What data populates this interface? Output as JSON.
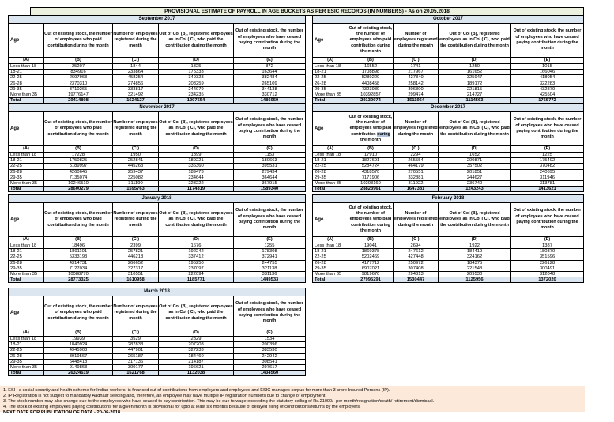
{
  "title": "PROVISIONAL ESTIMATE OF PAYROLL IN AGE BUCKETS AS PER ESIC RECORDS (IN NUMBERS) - As on 20.05.2018",
  "colors": {
    "title_fill": "#ebf1de",
    "header_fill": "#dce6f1",
    "notes_fill": "#fde9d9",
    "highlight_fill": "#b0c4de",
    "border": "#000000"
  },
  "column_headers": {
    "age": "Age",
    "b": "Out of existing stock, the number of employees who paid contribution during the month",
    "c": "Number of employees registered during the month",
    "d": "Out of Col (B), registered employees as in Col ( C), who paid the contribution during the month",
    "e": "Out of existing stock, the number of  employees  who have ceased paying contribution during the month",
    "letters": [
      "(A)",
      "(B)",
      "(C )",
      "(D)",
      "(E)"
    ]
  },
  "age_buckets": [
    "Less than 18",
    "18-21",
    "22-25",
    "26-28",
    "29-35",
    "More than 35",
    "Total"
  ],
  "tables": [
    {
      "month": "September 2017",
      "rows": [
        [
          25207,
          1844,
          1325,
          872
        ],
        [
          834916,
          233864,
          175333,
          163644
        ],
        [
          2697963,
          458254,
          349323,
          382484
        ],
        [
          2370310,
          274856,
          203259,
          265109
        ],
        [
          3710265,
          333817,
          244079,
          344138
        ],
        [
          19776147,
          321492,
          234235,
          330712
        ],
        [
          29414808,
          1624127,
          1207554,
          1486959
        ]
      ]
    },
    {
      "month": "October 2017",
      "rows": [
        [
          16552,
          1741,
          1250,
          1015
        ],
        [
          1708898,
          217967,
          161652,
          166046
        ],
        [
          5289220,
          427840,
          325947,
          418054
        ],
        [
          4408458,
          258142,
          189172,
          322283
        ],
        [
          7323989,
          306800,
          221815,
          432870
        ],
        [
          10392857,
          299474,
          214727,
          425504
        ],
        [
          29139974,
          1511964,
          1114563,
          1765772
        ]
      ]
    },
    {
      "month": "November 2017",
      "rows": [
        [
          17228,
          1950,
          1399,
          1153
        ],
        [
          1750825,
          252841,
          189221,
          180663
        ],
        [
          5189997,
          445263,
          336360,
          395531
        ],
        [
          4260645,
          259437,
          189473,
          279434
        ],
        [
          7135074,
          325082,
          234644,
          364644
        ],
        [
          10246510,
          311190,
          223222,
          367915
        ],
        [
          28600279,
          1595763,
          1174319,
          1589340
        ]
      ]
    },
    {
      "month": "December 2017",
      "b_header_highlight": "during",
      "rows": [
        [
          17910,
          2294,
          1652,
          1225
        ],
        [
          1827691,
          265554,
          200871,
          175492
        ],
        [
          5284724,
          464179,
          357502,
          370482
        ],
        [
          4318570,
          270551,
          201851,
          240695
        ],
        [
          7171906,
          332881,
          244627,
          311946
        ],
        [
          10203160,
          311922,
          236740,
          313781
        ],
        [
          28823961,
          1647381,
          1243243,
          1413621
        ]
      ]
    },
    {
      "month": "January 2018",
      "rows": [
        [
          18496,
          2399,
          1676,
          1255
        ],
        [
          1891101,
          257821,
          192242,
          178308
        ],
        [
          5333193,
          446218,
          337412,
          372941
        ],
        [
          4314731,
          266652,
          195250,
          244755
        ],
        [
          7127034,
          327317,
          237097,
          321138
        ],
        [
          10088770,
          310551,
          222094,
          331136
        ],
        [
          28773325,
          1610958,
          1185771,
          1449533
        ]
      ]
    },
    {
      "month": "February 2018",
      "rows": [
        [
          19041,
          2694,
          1922,
          1387
        ],
        [
          1869378,
          247612,
          184419,
          180370
        ],
        [
          5202469,
          427448,
          324162,
          351596
        ],
        [
          4177712,
          250972,
          184375,
          226128
        ],
        [
          6907021,
          307408,
          221548,
          300491
        ],
        [
          9819670,
          294313,
          209530,
          312048
        ],
        [
          27995291,
          1530447,
          1125956,
          1372020
        ]
      ]
    },
    {
      "month": "March 2018",
      "rows": [
        [
          19939,
          3529,
          2329,
          1534
        ],
        [
          1840924,
          287838,
          207208,
          200396
        ],
        [
          4945908,
          447901,
          327233,
          383530
        ],
        [
          3919567,
          265187,
          184460,
          242942
        ],
        [
          6448418,
          317136,
          214187,
          308541
        ],
        [
          9149863,
          300177,
          196621,
          297617
        ],
        [
          26324619,
          1621768,
          1132038,
          1434560
        ]
      ]
    }
  ],
  "notes": [
    "1. ESI , a social security and health scheme for Indian workers, is financed out of contributions from employers and employees and ESIC manages corpus for more than 3 crore Insured Persons (IP).",
    "2. IP Registration is not subject to mandatory Aadhaar seeding and, therefore, an employee may have multiple IP registration numbers due to change of employment",
    "3. The stock number may also change due to the employees who have ceased to pay contribution. This may  be due to wage exceeding the statutory ceiling of  Rs.21000/- per month/resignation/death/ retirement/dismissal.",
    "4. The stock of existing employees paying contributions for a given month is provisional for upto at least six months because of delayed filling of contributions/returns by the employers."
  ],
  "next_date": "NEXT DATE FOR PUBLICATION OF DATA - 20-06-2018"
}
